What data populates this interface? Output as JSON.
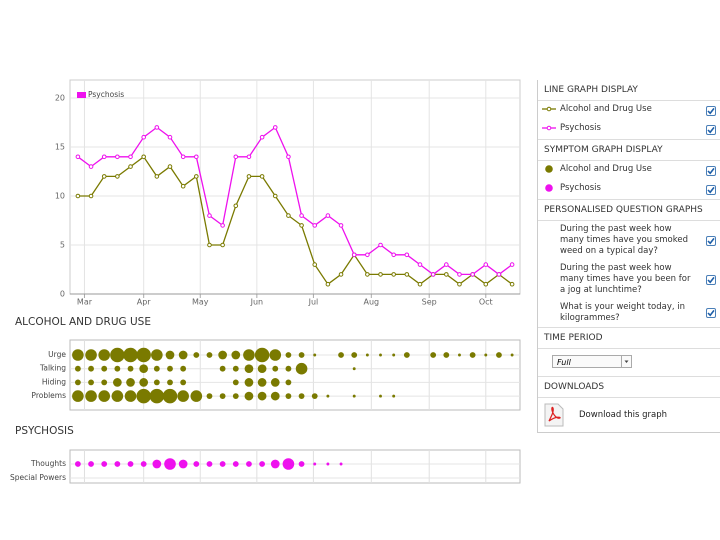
{
  "chart_data": [
    {
      "type": "line",
      "x": [
        0,
        1,
        2,
        3,
        4,
        5,
        6,
        7,
        8,
        9,
        10,
        11,
        12,
        13,
        14,
        15,
        16,
        17,
        18,
        19,
        20,
        21,
        22,
        23,
        24,
        25,
        26,
        27,
        28,
        29,
        30,
        31,
        32,
        33
      ],
      "xlim": [
        -0.6,
        33.6
      ],
      "xticks": [
        {
          "value": 0.5,
          "label": "Mar"
        },
        {
          "value": 5,
          "label": "Apr"
        },
        {
          "value": 9.3,
          "label": "May"
        },
        {
          "value": 13.6,
          "label": "Jun"
        },
        {
          "value": 17.9,
          "label": "Jul"
        },
        {
          "value": 22.3,
          "label": "Aug"
        },
        {
          "value": 26.7,
          "label": "Sep"
        },
        {
          "value": 31,
          "label": "Oct"
        }
      ],
      "ylim": [
        0,
        20
      ],
      "yticks": [
        0,
        5,
        10,
        15,
        20
      ],
      "grid": true,
      "legend": {
        "position": "top-left",
        "series": [
          1
        ]
      },
      "series": [
        {
          "name": "Alcohol and Drug Use",
          "color": "#7a7a00",
          "values": [
            10,
            10,
            12,
            12,
            13,
            14,
            12,
            13,
            11,
            12,
            5,
            5,
            9,
            12,
            12,
            10,
            8,
            7,
            3,
            1,
            2,
            4,
            2,
            2,
            2,
            2,
            1,
            2,
            2,
            1,
            2,
            1,
            2,
            1
          ]
        },
        {
          "name": "Psychosis",
          "color": "#ee11ee",
          "values": [
            14,
            13,
            14,
            14,
            14,
            16,
            17,
            16,
            14,
            14,
            8,
            7,
            14,
            14,
            16,
            17,
            14,
            8,
            7,
            8,
            7,
            4,
            4,
            5,
            4,
            4,
            3,
            2,
            3,
            2,
            2,
            3,
            2,
            3
          ]
        }
      ]
    },
    {
      "type": "dot",
      "title": "ALCOHOL AND DRUG USE",
      "color": "#7a7a00",
      "x": [
        0,
        1,
        2,
        3,
        4,
        5,
        6,
        7,
        8,
        9,
        10,
        11,
        12,
        13,
        14,
        15,
        16,
        17,
        18,
        19,
        20,
        21,
        22,
        23,
        24,
        25,
        26,
        27,
        28,
        29,
        30,
        31,
        32,
        33
      ],
      "xlim": [
        -0.6,
        33.6
      ],
      "xgrid": [
        0.5,
        5,
        9.3,
        13.6,
        17.9,
        22.3,
        26.7,
        31
      ],
      "series": [
        {
          "name": "Urge",
          "values": [
            4,
            4,
            4,
            5,
            5,
            5,
            4,
            3,
            3,
            2,
            2,
            3,
            3,
            4,
            5,
            4,
            2,
            2,
            1,
            0,
            2,
            2,
            1,
            1,
            1,
            2,
            0,
            2,
            2,
            1,
            2,
            1,
            2,
            1
          ]
        },
        {
          "name": "Talking",
          "values": [
            2,
            2,
            2,
            2,
            2,
            3,
            2,
            2,
            2,
            0,
            0,
            2,
            2,
            3,
            3,
            2,
            2,
            4,
            0,
            0,
            0,
            1,
            0,
            0,
            0,
            0,
            0,
            0,
            0,
            0,
            0,
            0,
            0,
            0
          ]
        },
        {
          "name": "Hiding",
          "values": [
            2,
            2,
            2,
            3,
            3,
            3,
            2,
            2,
            2,
            0,
            0,
            0,
            2,
            3,
            3,
            3,
            2,
            0,
            0,
            0,
            0,
            0,
            0,
            0,
            0,
            0,
            0,
            0,
            0,
            0,
            0,
            0,
            0,
            0
          ]
        },
        {
          "name": "Problems",
          "values": [
            4,
            4,
            4,
            4,
            4,
            5,
            5,
            5,
            4,
            4,
            2,
            2,
            2,
            3,
            3,
            3,
            2,
            2,
            2,
            1,
            0,
            1,
            0,
            1,
            1,
            0,
            0,
            0,
            0,
            0,
            0,
            0,
            0,
            0
          ]
        }
      ]
    },
    {
      "type": "dot",
      "title": "PSYCHOSIS",
      "color": "#ee11ee",
      "x": [
        0,
        1,
        2,
        3,
        4,
        5,
        6,
        7,
        8,
        9,
        10,
        11,
        12,
        13,
        14,
        15,
        16,
        17,
        18,
        19,
        20,
        21,
        22,
        23,
        24,
        25,
        26,
        27,
        28,
        29,
        30,
        31,
        32,
        33
      ],
      "xlim": [
        -0.6,
        33.6
      ],
      "xgrid": [
        0.5,
        5,
        9.3,
        13.6,
        17.9,
        22.3,
        26.7,
        31
      ],
      "series": [
        {
          "name": "Thoughts",
          "values": [
            2,
            2,
            2,
            2,
            2,
            2,
            3,
            4,
            3,
            2,
            2,
            2,
            2,
            2,
            2,
            3,
            4,
            2,
            1,
            1,
            1,
            0,
            0,
            0,
            0,
            0,
            0,
            0,
            0,
            0,
            0,
            0,
            0,
            0
          ]
        },
        {
          "name": "Special Powers",
          "values": [
            0,
            0,
            0,
            0,
            0,
            0,
            0,
            0,
            0,
            0,
            0,
            0,
            0,
            0,
            0,
            0,
            0,
            0,
            0,
            0,
            0,
            0,
            0,
            0,
            0,
            0,
            0,
            0,
            0,
            0,
            0,
            0,
            0,
            0
          ]
        }
      ]
    }
  ],
  "sidebar": {
    "sections": [
      {
        "heading": "LINE GRAPH DISPLAY",
        "items": [
          {
            "label": "Alcohol and Drug Use",
            "marker": "line",
            "color": "#7a7a00",
            "checked": true
          },
          {
            "label": "Psychosis",
            "marker": "line",
            "color": "#ee11ee",
            "checked": true
          }
        ]
      },
      {
        "heading": "SYMPTOM GRAPH DISPLAY",
        "items": [
          {
            "label": "Alcohol and Drug Use",
            "marker": "dot",
            "color": "#7a7a00",
            "checked": true
          },
          {
            "label": "Psychosis",
            "marker": "dot",
            "color": "#ee11ee",
            "checked": true
          }
        ]
      },
      {
        "heading": "PERSONALISED QUESTION GRAPHS",
        "items": [
          {
            "label": "During the past week how many times have you smoked weed on a typical day?",
            "checked": true
          },
          {
            "label": "During the past week how many times have you been for a jog at lunchtime?",
            "checked": true
          },
          {
            "label": "What is your weight today, in kilogrammes?",
            "checked": true
          }
        ]
      },
      {
        "heading": "TIME PERIOD",
        "select": "Full"
      },
      {
        "heading": "DOWNLOADS",
        "link": "Download this graph"
      }
    ]
  }
}
